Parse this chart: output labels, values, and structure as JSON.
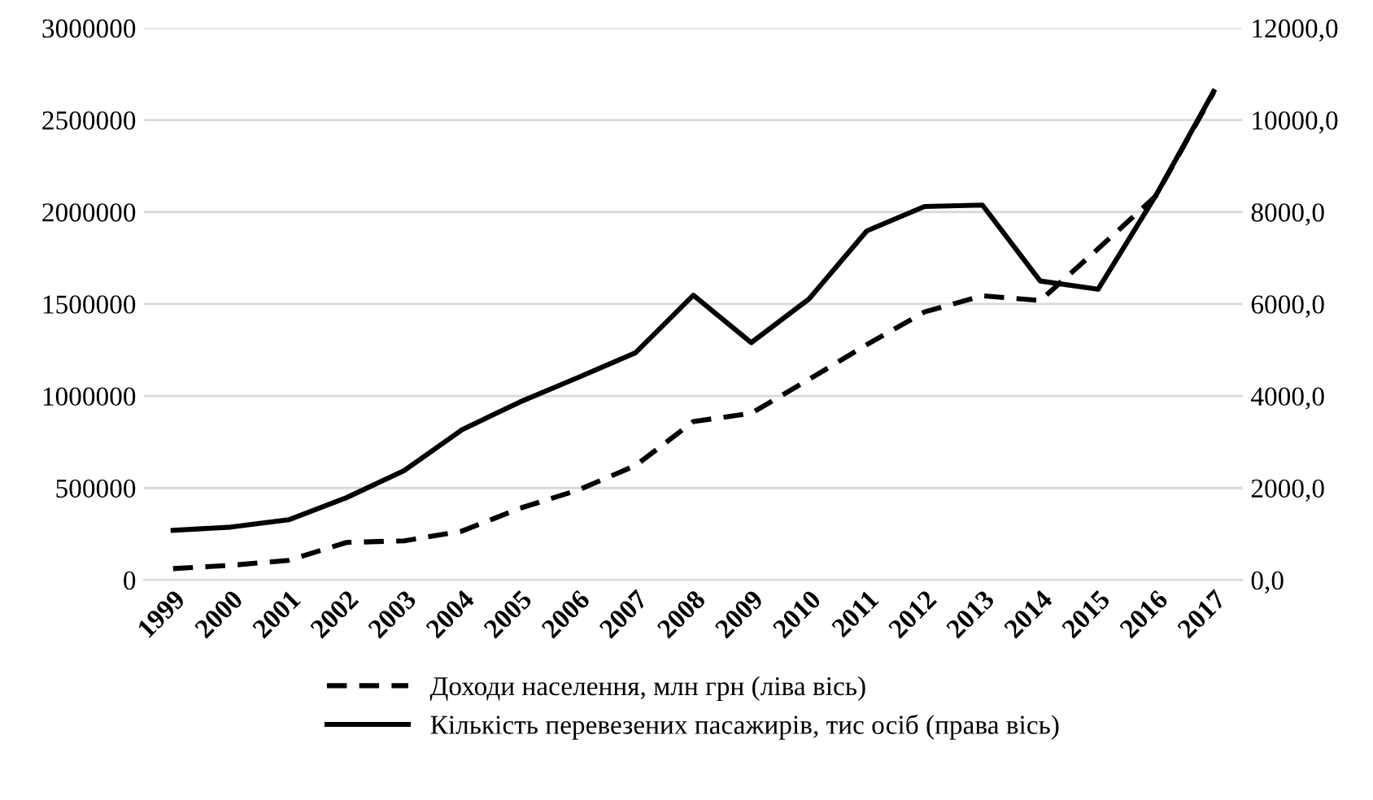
{
  "chart_data": {
    "type": "line",
    "categories": [
      "1999",
      "2000",
      "2001",
      "2002",
      "2003",
      "2004",
      "2005",
      "2006",
      "2007",
      "2008",
      "2009",
      "2010",
      "2011",
      "2012",
      "2013",
      "2014",
      "2015",
      "2016",
      "2017"
    ],
    "series": [
      {
        "name": "Доходи населення, млн грн (ліва вісь)",
        "color": "#000000",
        "line_style": "dashed",
        "values": [
          62000,
          80000,
          107000,
          204000,
          213000,
          266000,
          390000,
          488000,
          622000,
          861000,
          906000,
          1090000,
          1279000,
          1457000,
          1545000,
          1519000,
          1800000,
          2087000,
          2650000
        ]
      },
      {
        "name": "Кількість перевезених пасажирів, тис осіб (права вісь)",
        "color": "#000000",
        "line_style": "solid",
        "axis": "y2",
        "values": [
          1080,
          1150,
          1310,
          1790,
          2380,
          3270,
          3870,
          4400,
          4940,
          6190,
          5160,
          6110,
          7590,
          8120,
          8150,
          6500,
          6320,
          8360,
          10620
        ]
      }
    ],
    "ylim": [
      0,
      3000000
    ],
    "yticks": [
      0,
      500000,
      1000000,
      1500000,
      2000000,
      2500000,
      3000000
    ],
    "y2lim": [
      0,
      12000
    ],
    "y2ticks": [
      {
        "value": 0,
        "label": "0,0"
      },
      {
        "value": 2000,
        "label": "2000,0"
      },
      {
        "value": 4000,
        "label": "4000,0"
      },
      {
        "value": 6000,
        "label": "6000,0"
      },
      {
        "value": 8000,
        "label": "8000,0"
      },
      {
        "value": 10000,
        "label": "10000,0"
      },
      {
        "value": 12000,
        "label": "12000,0"
      }
    ],
    "grid": "y",
    "legend": "bottom",
    "marker": "none"
  }
}
